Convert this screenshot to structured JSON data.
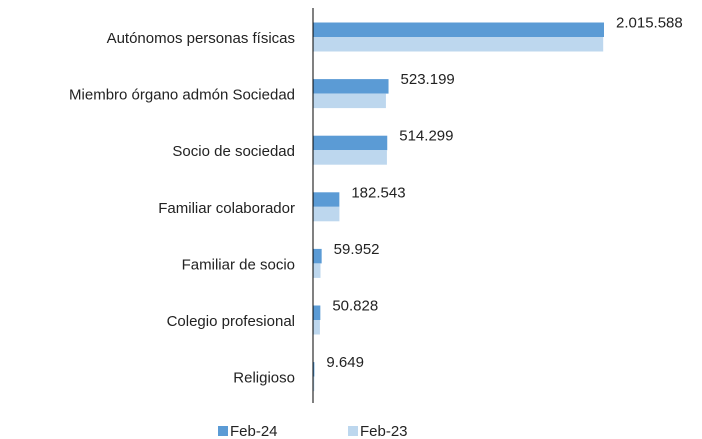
{
  "chart_data": {
    "type": "bar",
    "orientation": "horizontal",
    "categories": [
      "Autónomos personas físicas",
      "Miembro órgano admón Sociedad",
      "Socio de sociedad",
      "Familiar colaborador",
      "Familiar de socio",
      "Colegio profesional",
      "Religioso"
    ],
    "series": [
      {
        "name": "Feb-24",
        "color": "#5b9bd5",
        "values": [
          2015588,
          523199,
          514299,
          182543,
          59952,
          50828,
          9649
        ],
        "value_labels": [
          "2.015.588",
          "523.199",
          "514.299",
          "182.543",
          "59.952",
          "50.828",
          "9.649"
        ]
      },
      {
        "name": "Feb-23",
        "color": "#bdd7ee",
        "values": [
          2010000,
          505000,
          512000,
          183000,
          52000,
          48000,
          9000
        ]
      }
    ],
    "legend": "bottom"
  }
}
